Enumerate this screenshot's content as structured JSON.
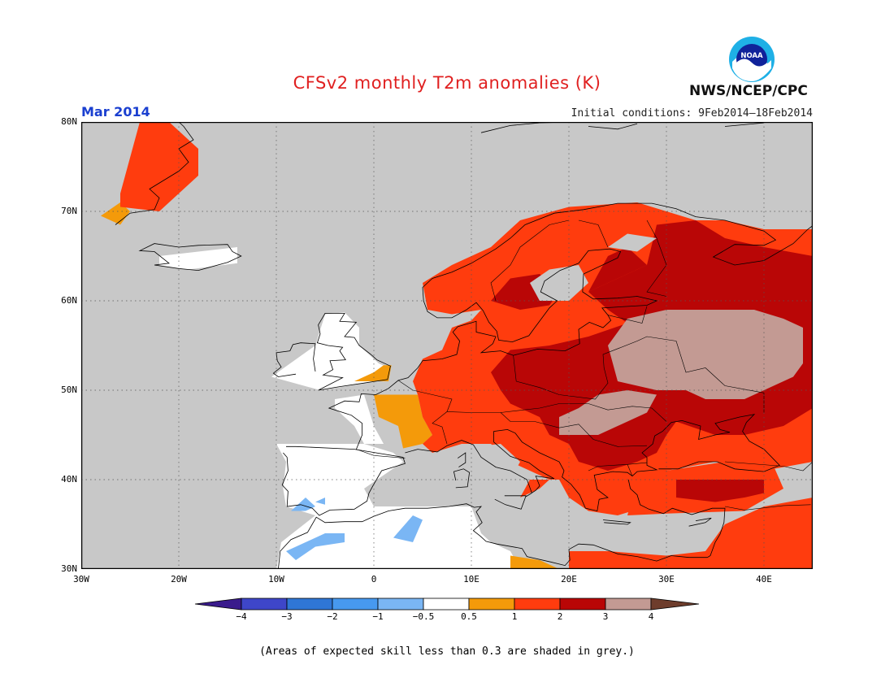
{
  "title": "CFSv2 monthly T2m anomalies (K)",
  "month": "Mar 2014",
  "initial_conditions": "Initial conditions: 9Feb2014–18Feb2014",
  "agency": "NWS/NCEP/CPC",
  "logo_text": "NOAA",
  "colors": {
    "title": "#e02020",
    "month": "#1a3fd0",
    "grey": "#c8c8c8",
    "cat_-4": "#3a1b8c",
    "cat_-3": "#3e46c9",
    "cat_-2": "#2f76d6",
    "cat_-1": "#4799ef",
    "cat_-0.5": "#7ab6f4",
    "cat_0": "#ffffff",
    "cat_0.5": "#f49a0a",
    "cat_1": "#ff3c0e",
    "cat_2": "#b90606",
    "cat_3": "#c39a93",
    "cat_4": "#6e3d2c"
  },
  "map": {
    "lon_range": [
      -30,
      45
    ],
    "lat_range": [
      30,
      80
    ],
    "lat_labels": [
      "30N",
      "40N",
      "50N",
      "60N",
      "70N",
      "80N"
    ],
    "lat_values": [
      30,
      40,
      50,
      60,
      70,
      80
    ],
    "lon_labels": [
      "30W",
      "20W",
      "10W",
      "0",
      "10E",
      "20E",
      "30E",
      "40E"
    ],
    "lon_values": [
      -30,
      -20,
      -10,
      0,
      10,
      20,
      30,
      40
    ]
  },
  "colorbar": {
    "labels": [
      "−4",
      "−3",
      "−2",
      "−1",
      "−0.5",
      "0.5",
      "1",
      "2",
      "3",
      "4"
    ],
    "categories": [
      "cat_-3",
      "cat_-2",
      "cat_-1",
      "cat_-0.5",
      "cat_0",
      "cat_0.5",
      "cat_1",
      "cat_2",
      "cat_3"
    ]
  },
  "note": "(Areas of expected skill less than 0.3 are shaded in grey.)"
}
